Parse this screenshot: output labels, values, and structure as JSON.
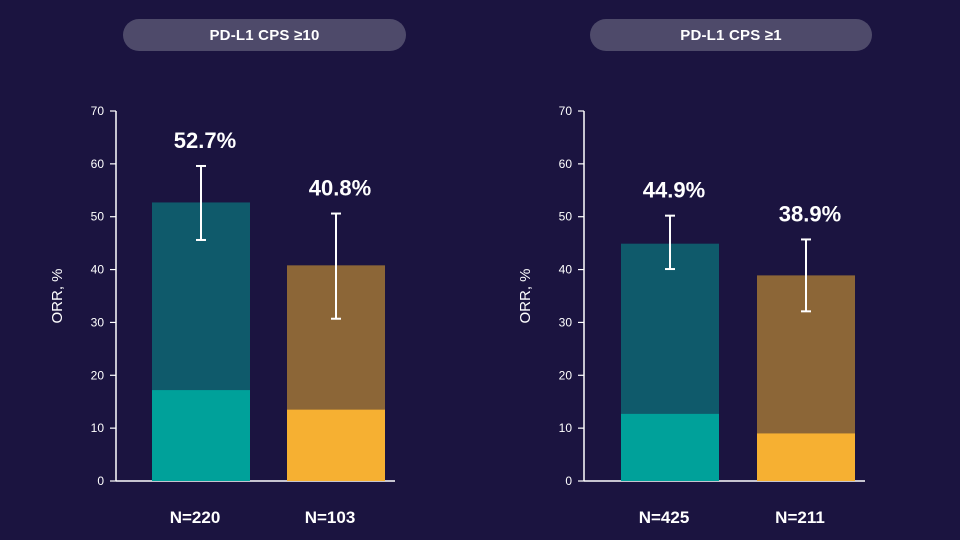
{
  "colors": {
    "background": "#1b1440",
    "pill": "#4e4a6a",
    "teal_dark": "#0f5a6b",
    "teal_light": "#00a19a",
    "brown": "#8c6637",
    "gold": "#f6b032",
    "axis": "#ffffff"
  },
  "chart_data": [
    {
      "type": "bar",
      "title": "PD-L1 CPS ≥10",
      "ylabel": "ORR, %",
      "ylim": [
        0,
        70
      ],
      "yticks": [
        "0",
        "10",
        "20",
        "30",
        "40",
        "50",
        "60",
        "70"
      ],
      "categories": [
        "N=220",
        "N=103"
      ],
      "bars": [
        {
          "value": 52.7,
          "label": "52.7%",
          "lower_segment": 17.2,
          "ci": [
            45.6,
            59.6
          ],
          "colors": [
            "teal_light",
            "teal_dark"
          ]
        },
        {
          "value": 40.8,
          "label": "40.8%",
          "lower_segment": 13.5,
          "ci": [
            30.7,
            50.6
          ],
          "colors": [
            "gold",
            "brown"
          ]
        }
      ]
    },
    {
      "type": "bar",
      "title": "PD-L1 CPS ≥1",
      "ylabel": "ORR, %",
      "ylim": [
        0,
        70
      ],
      "yticks": [
        "0",
        "10",
        "20",
        "30",
        "40",
        "50",
        "60",
        "70"
      ],
      "categories": [
        "N=425",
        "N=211"
      ],
      "bars": [
        {
          "value": 44.9,
          "label": "44.9%",
          "lower_segment": 12.7,
          "ci": [
            40.1,
            50.2
          ],
          "colors": [
            "teal_light",
            "teal_dark"
          ]
        },
        {
          "value": 38.9,
          "label": "38.9%",
          "lower_segment": 9.0,
          "ci": [
            32.1,
            45.7
          ],
          "colors": [
            "gold",
            "brown"
          ]
        }
      ]
    }
  ]
}
